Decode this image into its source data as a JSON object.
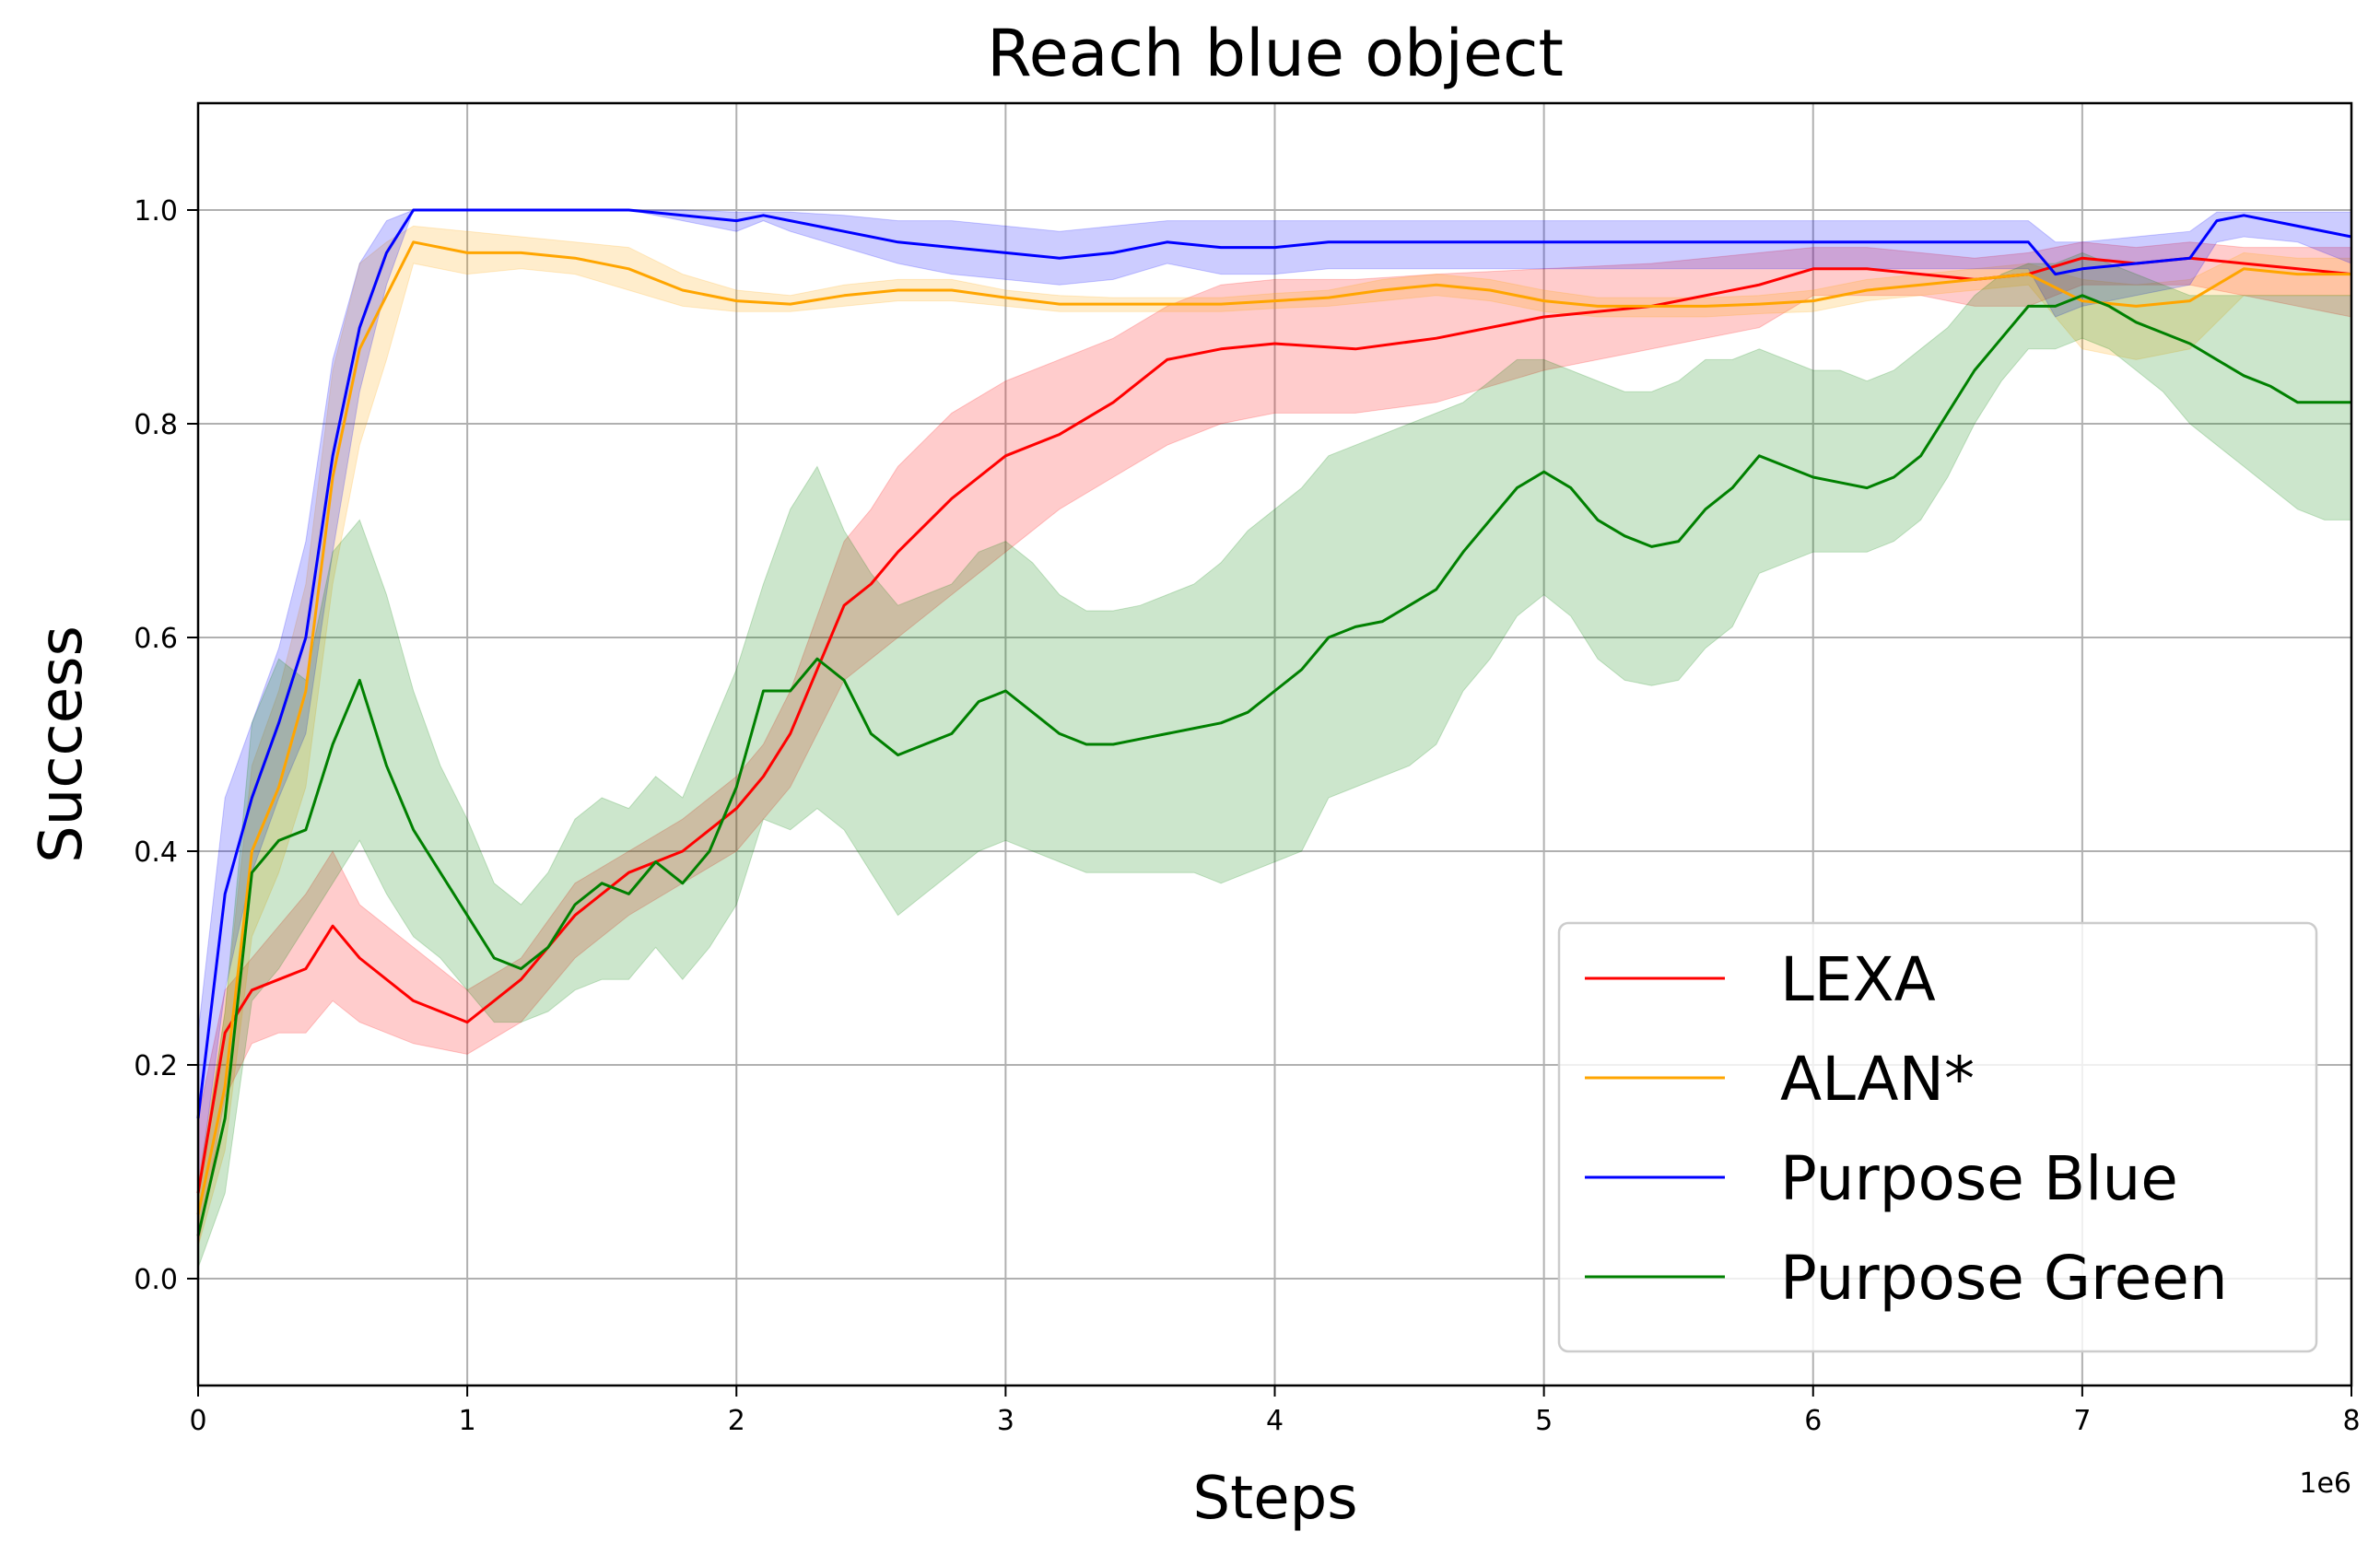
{
  "chart_data": {
    "type": "line",
    "title": "Reach blue object",
    "xlabel": "Steps",
    "ylabel": "Success",
    "x_offset_text": "1e6",
    "xlim": [
      0,
      8
    ],
    "ylim": [
      -0.1,
      1.1
    ],
    "x_scale_multiplier": 1000000,
    "xticks": [
      0,
      1,
      2,
      3,
      4,
      5,
      6,
      7,
      8
    ],
    "xtick_labels": [
      "0",
      "1",
      "2",
      "3",
      "4",
      "5",
      "6",
      "7",
      "8"
    ],
    "yticks": [
      0.0,
      0.2,
      0.4,
      0.6,
      0.8,
      1.0
    ],
    "ytick_labels": [
      "0.0",
      "0.2",
      "0.4",
      "0.6",
      "0.8",
      "1.0"
    ],
    "grid": true,
    "legend_position": "lower-right",
    "series": [
      {
        "name": "LEXA",
        "color": "#ff0000",
        "x": [
          0,
          0.1,
          0.2,
          0.3,
          0.4,
          0.5,
          0.6,
          0.8,
          1.0,
          1.2,
          1.4,
          1.6,
          1.8,
          2.0,
          2.1,
          2.2,
          2.3,
          2.4,
          2.5,
          2.6,
          2.8,
          3.0,
          3.2,
          3.4,
          3.6,
          3.8,
          4.0,
          4.3,
          4.6,
          5.0,
          5.4,
          5.8,
          6.0,
          6.2,
          6.4,
          6.6,
          6.8,
          7.0,
          7.2,
          7.4,
          7.6,
          7.8,
          8.0
        ],
        "y": [
          0.08,
          0.23,
          0.27,
          0.28,
          0.29,
          0.33,
          0.3,
          0.26,
          0.24,
          0.28,
          0.34,
          0.38,
          0.4,
          0.44,
          0.47,
          0.51,
          0.57,
          0.63,
          0.65,
          0.68,
          0.73,
          0.77,
          0.79,
          0.82,
          0.86,
          0.87,
          0.875,
          0.87,
          0.88,
          0.9,
          0.91,
          0.93,
          0.945,
          0.945,
          0.94,
          0.935,
          0.94,
          0.955,
          0.95,
          0.955,
          0.95,
          0.945,
          0.94
        ],
        "upper": [
          0.15,
          0.27,
          0.3,
          0.33,
          0.36,
          0.4,
          0.35,
          0.31,
          0.27,
          0.3,
          0.37,
          0.4,
          0.43,
          0.47,
          0.5,
          0.55,
          0.62,
          0.69,
          0.72,
          0.76,
          0.81,
          0.84,
          0.86,
          0.88,
          0.91,
          0.93,
          0.935,
          0.935,
          0.94,
          0.945,
          0.95,
          0.96,
          0.965,
          0.965,
          0.96,
          0.955,
          0.96,
          0.97,
          0.965,
          0.97,
          0.965,
          0.965,
          0.965
        ],
        "lower": [
          0.03,
          0.17,
          0.22,
          0.23,
          0.23,
          0.26,
          0.24,
          0.22,
          0.21,
          0.24,
          0.3,
          0.34,
          0.37,
          0.4,
          0.43,
          0.46,
          0.51,
          0.56,
          0.58,
          0.6,
          0.64,
          0.68,
          0.72,
          0.75,
          0.78,
          0.8,
          0.81,
          0.81,
          0.82,
          0.85,
          0.87,
          0.89,
          0.92,
          0.92,
          0.92,
          0.91,
          0.91,
          0.93,
          0.93,
          0.93,
          0.92,
          0.91,
          0.9
        ]
      },
      {
        "name": "ALAN*",
        "color": "#ffa500",
        "x": [
          0,
          0.1,
          0.2,
          0.3,
          0.4,
          0.5,
          0.6,
          0.7,
          0.8,
          1.0,
          1.2,
          1.4,
          1.6,
          1.8,
          2.0,
          2.2,
          2.4,
          2.6,
          2.8,
          3.0,
          3.2,
          3.4,
          3.6,
          3.8,
          4.0,
          4.2,
          4.4,
          4.6,
          4.8,
          5.0,
          5.2,
          5.4,
          5.6,
          5.8,
          6.0,
          6.2,
          6.4,
          6.6,
          6.8,
          7.0,
          7.2,
          7.4,
          7.6,
          7.8,
          8.0
        ],
        "y": [
          0.06,
          0.18,
          0.4,
          0.46,
          0.55,
          0.75,
          0.87,
          0.92,
          0.97,
          0.96,
          0.96,
          0.955,
          0.945,
          0.925,
          0.915,
          0.912,
          0.92,
          0.925,
          0.925,
          0.918,
          0.912,
          0.912,
          0.912,
          0.912,
          0.915,
          0.918,
          0.925,
          0.93,
          0.925,
          0.915,
          0.91,
          0.91,
          0.91,
          0.912,
          0.915,
          0.925,
          0.93,
          0.935,
          0.94,
          0.915,
          0.91,
          0.915,
          0.945,
          0.94,
          0.94
        ],
        "upper": [
          0.09,
          0.25,
          0.48,
          0.55,
          0.65,
          0.85,
          0.95,
          0.97,
          0.985,
          0.98,
          0.975,
          0.97,
          0.965,
          0.94,
          0.925,
          0.92,
          0.93,
          0.935,
          0.935,
          0.925,
          0.92,
          0.918,
          0.918,
          0.918,
          0.922,
          0.925,
          0.935,
          0.94,
          0.935,
          0.925,
          0.918,
          0.918,
          0.918,
          0.92,
          0.925,
          0.935,
          0.94,
          0.945,
          0.95,
          0.935,
          0.93,
          0.935,
          0.96,
          0.955,
          0.955
        ],
        "lower": [
          0.03,
          0.12,
          0.32,
          0.38,
          0.46,
          0.65,
          0.78,
          0.86,
          0.95,
          0.94,
          0.945,
          0.94,
          0.925,
          0.91,
          0.905,
          0.905,
          0.91,
          0.915,
          0.915,
          0.91,
          0.905,
          0.905,
          0.905,
          0.905,
          0.908,
          0.91,
          0.915,
          0.92,
          0.915,
          0.905,
          0.9,
          0.9,
          0.9,
          0.903,
          0.905,
          0.915,
          0.92,
          0.925,
          0.93,
          0.87,
          0.86,
          0.87,
          0.92,
          0.92,
          0.92
        ]
      },
      {
        "name": "Purpose Blue",
        "color": "#0000ff",
        "x": [
          0,
          0.1,
          0.2,
          0.3,
          0.4,
          0.5,
          0.6,
          0.7,
          0.8,
          1.0,
          1.2,
          1.4,
          1.6,
          1.8,
          2.0,
          2.1,
          2.2,
          2.4,
          2.6,
          2.8,
          3.0,
          3.2,
          3.4,
          3.6,
          3.8,
          4.0,
          4.2,
          4.4,
          4.6,
          4.8,
          5.0,
          5.5,
          6.0,
          6.5,
          6.8,
          6.9,
          7.0,
          7.2,
          7.4,
          7.5,
          7.6,
          7.8,
          8.0
        ],
        "y": [
          0.15,
          0.36,
          0.45,
          0.52,
          0.6,
          0.77,
          0.89,
          0.96,
          1.0,
          1.0,
          1.0,
          1.0,
          1.0,
          0.995,
          0.99,
          0.995,
          0.99,
          0.98,
          0.97,
          0.965,
          0.96,
          0.955,
          0.96,
          0.97,
          0.965,
          0.965,
          0.97,
          0.97,
          0.97,
          0.97,
          0.97,
          0.97,
          0.97,
          0.97,
          0.97,
          0.94,
          0.945,
          0.95,
          0.955,
          0.99,
          0.995,
          0.985,
          0.975
        ],
        "upper": [
          0.23,
          0.45,
          0.52,
          0.59,
          0.69,
          0.86,
          0.95,
          0.99,
          1.0,
          1.0,
          1.0,
          1.0,
          1.0,
          1.0,
          0.998,
          0.998,
          0.998,
          0.995,
          0.99,
          0.99,
          0.985,
          0.98,
          0.985,
          0.99,
          0.99,
          0.99,
          0.99,
          0.99,
          0.99,
          0.99,
          0.99,
          0.99,
          0.99,
          0.99,
          0.99,
          0.97,
          0.97,
          0.975,
          0.98,
          0.998,
          0.998,
          0.998,
          0.998
        ],
        "lower": [
          0.08,
          0.27,
          0.38,
          0.45,
          0.51,
          0.68,
          0.83,
          0.93,
          1.0,
          1.0,
          1.0,
          1.0,
          1.0,
          0.99,
          0.98,
          0.99,
          0.98,
          0.965,
          0.95,
          0.94,
          0.935,
          0.93,
          0.935,
          0.95,
          0.94,
          0.94,
          0.945,
          0.945,
          0.945,
          0.945,
          0.945,
          0.945,
          0.945,
          0.945,
          0.945,
          0.9,
          0.91,
          0.92,
          0.93,
          0.97,
          0.975,
          0.97,
          0.95
        ]
      },
      {
        "name": "Purpose Green",
        "color": "#008000",
        "x": [
          0,
          0.1,
          0.2,
          0.3,
          0.4,
          0.5,
          0.6,
          0.7,
          0.8,
          0.9,
          1.0,
          1.1,
          1.2,
          1.3,
          1.4,
          1.5,
          1.6,
          1.7,
          1.8,
          1.9,
          2.0,
          2.1,
          2.2,
          2.3,
          2.4,
          2.5,
          2.6,
          2.7,
          2.8,
          2.9,
          3.0,
          3.1,
          3.2,
          3.3,
          3.4,
          3.5,
          3.6,
          3.7,
          3.8,
          3.9,
          4.0,
          4.1,
          4.2,
          4.3,
          4.4,
          4.5,
          4.6,
          4.7,
          4.8,
          4.9,
          5.0,
          5.1,
          5.2,
          5.3,
          5.4,
          5.5,
          5.6,
          5.7,
          5.8,
          5.9,
          6.0,
          6.1,
          6.2,
          6.3,
          6.4,
          6.5,
          6.6,
          6.7,
          6.8,
          6.9,
          7.0,
          7.1,
          7.2,
          7.3,
          7.4,
          7.5,
          7.6,
          7.7,
          7.8,
          7.9,
          8.0
        ],
        "y": [
          0.04,
          0.15,
          0.38,
          0.41,
          0.42,
          0.5,
          0.56,
          0.48,
          0.42,
          0.38,
          0.34,
          0.3,
          0.29,
          0.31,
          0.35,
          0.37,
          0.36,
          0.39,
          0.37,
          0.4,
          0.46,
          0.55,
          0.55,
          0.58,
          0.56,
          0.51,
          0.49,
          0.5,
          0.51,
          0.54,
          0.55,
          0.53,
          0.51,
          0.5,
          0.5,
          0.505,
          0.51,
          0.515,
          0.52,
          0.53,
          0.55,
          0.57,
          0.6,
          0.61,
          0.615,
          0.63,
          0.645,
          0.68,
          0.71,
          0.74,
          0.755,
          0.74,
          0.71,
          0.695,
          0.685,
          0.69,
          0.72,
          0.74,
          0.77,
          0.76,
          0.75,
          0.745,
          0.74,
          0.75,
          0.77,
          0.81,
          0.85,
          0.88,
          0.91,
          0.91,
          0.92,
          0.91,
          0.895,
          0.885,
          0.875,
          0.86,
          0.845,
          0.835,
          0.82,
          0.82,
          0.82
        ],
        "upper": [
          0.08,
          0.25,
          0.52,
          0.58,
          0.56,
          0.68,
          0.71,
          0.64,
          0.55,
          0.48,
          0.43,
          0.37,
          0.35,
          0.38,
          0.43,
          0.45,
          0.44,
          0.47,
          0.45,
          0.51,
          0.57,
          0.65,
          0.72,
          0.76,
          0.7,
          0.66,
          0.63,
          0.64,
          0.65,
          0.68,
          0.69,
          0.67,
          0.64,
          0.625,
          0.625,
          0.63,
          0.64,
          0.65,
          0.67,
          0.7,
          0.72,
          0.74,
          0.77,
          0.78,
          0.79,
          0.8,
          0.81,
          0.82,
          0.84,
          0.86,
          0.86,
          0.85,
          0.84,
          0.83,
          0.83,
          0.84,
          0.86,
          0.86,
          0.87,
          0.86,
          0.85,
          0.85,
          0.84,
          0.85,
          0.87,
          0.89,
          0.92,
          0.94,
          0.95,
          0.95,
          0.96,
          0.95,
          0.94,
          0.93,
          0.92,
          0.92,
          0.92,
          0.92,
          0.92,
          0.92,
          0.92
        ],
        "lower": [
          0.01,
          0.08,
          0.26,
          0.29,
          0.33,
          0.37,
          0.41,
          0.36,
          0.32,
          0.3,
          0.27,
          0.24,
          0.24,
          0.25,
          0.27,
          0.28,
          0.28,
          0.31,
          0.28,
          0.31,
          0.35,
          0.43,
          0.42,
          0.44,
          0.42,
          0.38,
          0.34,
          0.36,
          0.38,
          0.4,
          0.41,
          0.4,
          0.39,
          0.38,
          0.38,
          0.38,
          0.38,
          0.38,
          0.37,
          0.38,
          0.39,
          0.4,
          0.45,
          0.46,
          0.47,
          0.48,
          0.5,
          0.55,
          0.58,
          0.62,
          0.64,
          0.62,
          0.58,
          0.56,
          0.555,
          0.56,
          0.59,
          0.61,
          0.66,
          0.67,
          0.68,
          0.68,
          0.68,
          0.69,
          0.71,
          0.75,
          0.8,
          0.84,
          0.87,
          0.87,
          0.88,
          0.87,
          0.85,
          0.83,
          0.8,
          0.78,
          0.76,
          0.74,
          0.72,
          0.71,
          0.71
        ]
      }
    ]
  }
}
